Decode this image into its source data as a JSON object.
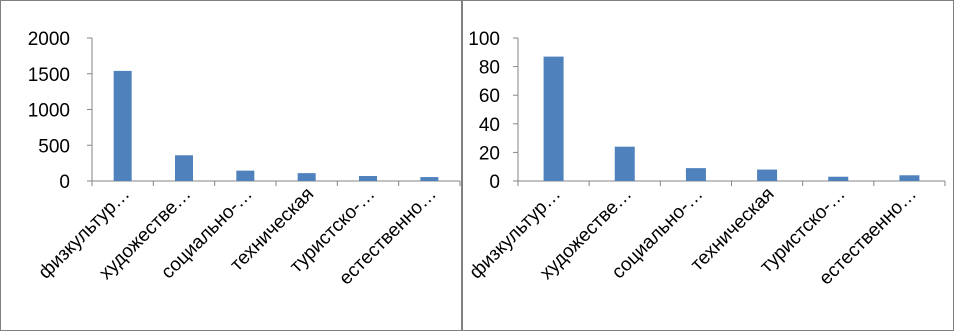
{
  "chart_data": [
    {
      "type": "bar",
      "categories": [
        "физкультур…",
        "художестве…",
        "социально-…",
        "техническая",
        "туристско-…",
        "естественно…"
      ],
      "values": [
        1540,
        360,
        145,
        110,
        70,
        55
      ],
      "ylim": [
        0,
        2000
      ],
      "yticks": [
        0,
        500,
        1000,
        1500,
        2000
      ],
      "grid": false,
      "legend": "none",
      "bar_color": "#4f81bd"
    },
    {
      "type": "bar",
      "categories": [
        "физкультур…",
        "художестве…",
        "социально-…",
        "техническая",
        "туристско-…",
        "естественно…"
      ],
      "values": [
        87,
        24,
        9,
        8,
        3,
        4
      ],
      "ylim": [
        0,
        100
      ],
      "yticks": [
        0,
        20,
        40,
        60,
        80,
        100
      ],
      "grid": false,
      "legend": "none",
      "bar_color": "#4f81bd"
    }
  ]
}
